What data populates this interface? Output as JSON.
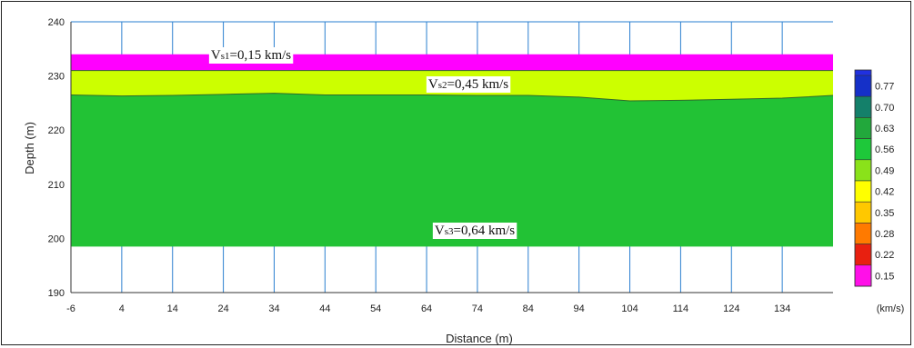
{
  "chart_data": {
    "type": "heatmap",
    "xlabel": "Distance (m)",
    "ylabel": "Depth (m)",
    "xlim": [
      -6,
      144
    ],
    "ylim": [
      190,
      240
    ],
    "x_ticks": [
      "-6",
      "4",
      "14",
      "24",
      "34",
      "44",
      "54",
      "64",
      "74",
      "84",
      "94",
      "104",
      "114",
      "124",
      "134"
    ],
    "y_ticks": [
      "190",
      "200",
      "210",
      "220",
      "230",
      "240"
    ],
    "model_x_range": [
      -6,
      144
    ],
    "layers": [
      {
        "annotation": "Vs1=0,15 km/s",
        "annotation_main": "V",
        "annotation_sub": "s1",
        "annotation_rest": "=0,15 km/s",
        "velocity": 0.15,
        "color": "#ff00ff",
        "top": [
          [
            -6,
            234
          ],
          [
            144,
            234
          ]
        ],
        "bottom": [
          [
            -6,
            231
          ],
          [
            144,
            231
          ]
        ]
      },
      {
        "annotation": "Vs2=0,45 km/s",
        "annotation_main": "V",
        "annotation_sub": "s2",
        "annotation_rest": "=0,45 km/s",
        "velocity": 0.45,
        "color": "#ccff00",
        "top": [
          [
            -6,
            231
          ],
          [
            144,
            231
          ]
        ],
        "bottom": [
          [
            -6,
            226.5
          ],
          [
            4,
            226.3
          ],
          [
            14,
            226.4
          ],
          [
            24,
            226.6
          ],
          [
            34,
            226.8
          ],
          [
            44,
            226.5
          ],
          [
            54,
            226.5
          ],
          [
            64,
            226.5
          ],
          [
            74,
            226.4
          ],
          [
            84,
            226.4
          ],
          [
            94,
            226.1
          ],
          [
            104,
            225.4
          ],
          [
            114,
            225.5
          ],
          [
            124,
            225.7
          ],
          [
            134,
            225.9
          ],
          [
            144,
            226.4
          ]
        ]
      },
      {
        "annotation": "Vs3=0,64 km/s",
        "annotation_main": "V",
        "annotation_sub": "s3",
        "annotation_rest": "=0,64 km/s",
        "velocity": 0.64,
        "color": "#22c235",
        "top": [
          [
            -6,
            226.5
          ],
          [
            4,
            226.3
          ],
          [
            14,
            226.4
          ],
          [
            24,
            226.6
          ],
          [
            34,
            226.8
          ],
          [
            44,
            226.5
          ],
          [
            54,
            226.5
          ],
          [
            64,
            226.5
          ],
          [
            74,
            226.4
          ],
          [
            84,
            226.4
          ],
          [
            94,
            226.1
          ],
          [
            104,
            225.4
          ],
          [
            114,
            225.5
          ],
          [
            124,
            225.7
          ],
          [
            134,
            225.9
          ],
          [
            144,
            226.4
          ]
        ],
        "bottom": [
          [
            -6,
            198.5
          ],
          [
            144,
            198.5
          ]
        ]
      }
    ],
    "colorbar": {
      "unit": "(km/s)",
      "levels": [
        {
          "label": "0.77",
          "color": "#1530c8"
        },
        {
          "label": "0.70",
          "color": "#14806a"
        },
        {
          "label": "0.63",
          "color": "#22a83c"
        },
        {
          "label": "0.56",
          "color": "#1ec83a"
        },
        {
          "label": "0.49",
          "color": "#8ae21a"
        },
        {
          "label": "0.42",
          "color": "#ffff00"
        },
        {
          "label": "0.35",
          "color": "#ffc800"
        },
        {
          "label": "0.28",
          "color": "#ff7a00"
        },
        {
          "label": "0.22",
          "color": "#e82010"
        },
        {
          "label": "0.15",
          "color": "#ff10e8"
        }
      ],
      "extra_top_colors": [
        "#2030e0"
      ]
    },
    "grid": true
  }
}
